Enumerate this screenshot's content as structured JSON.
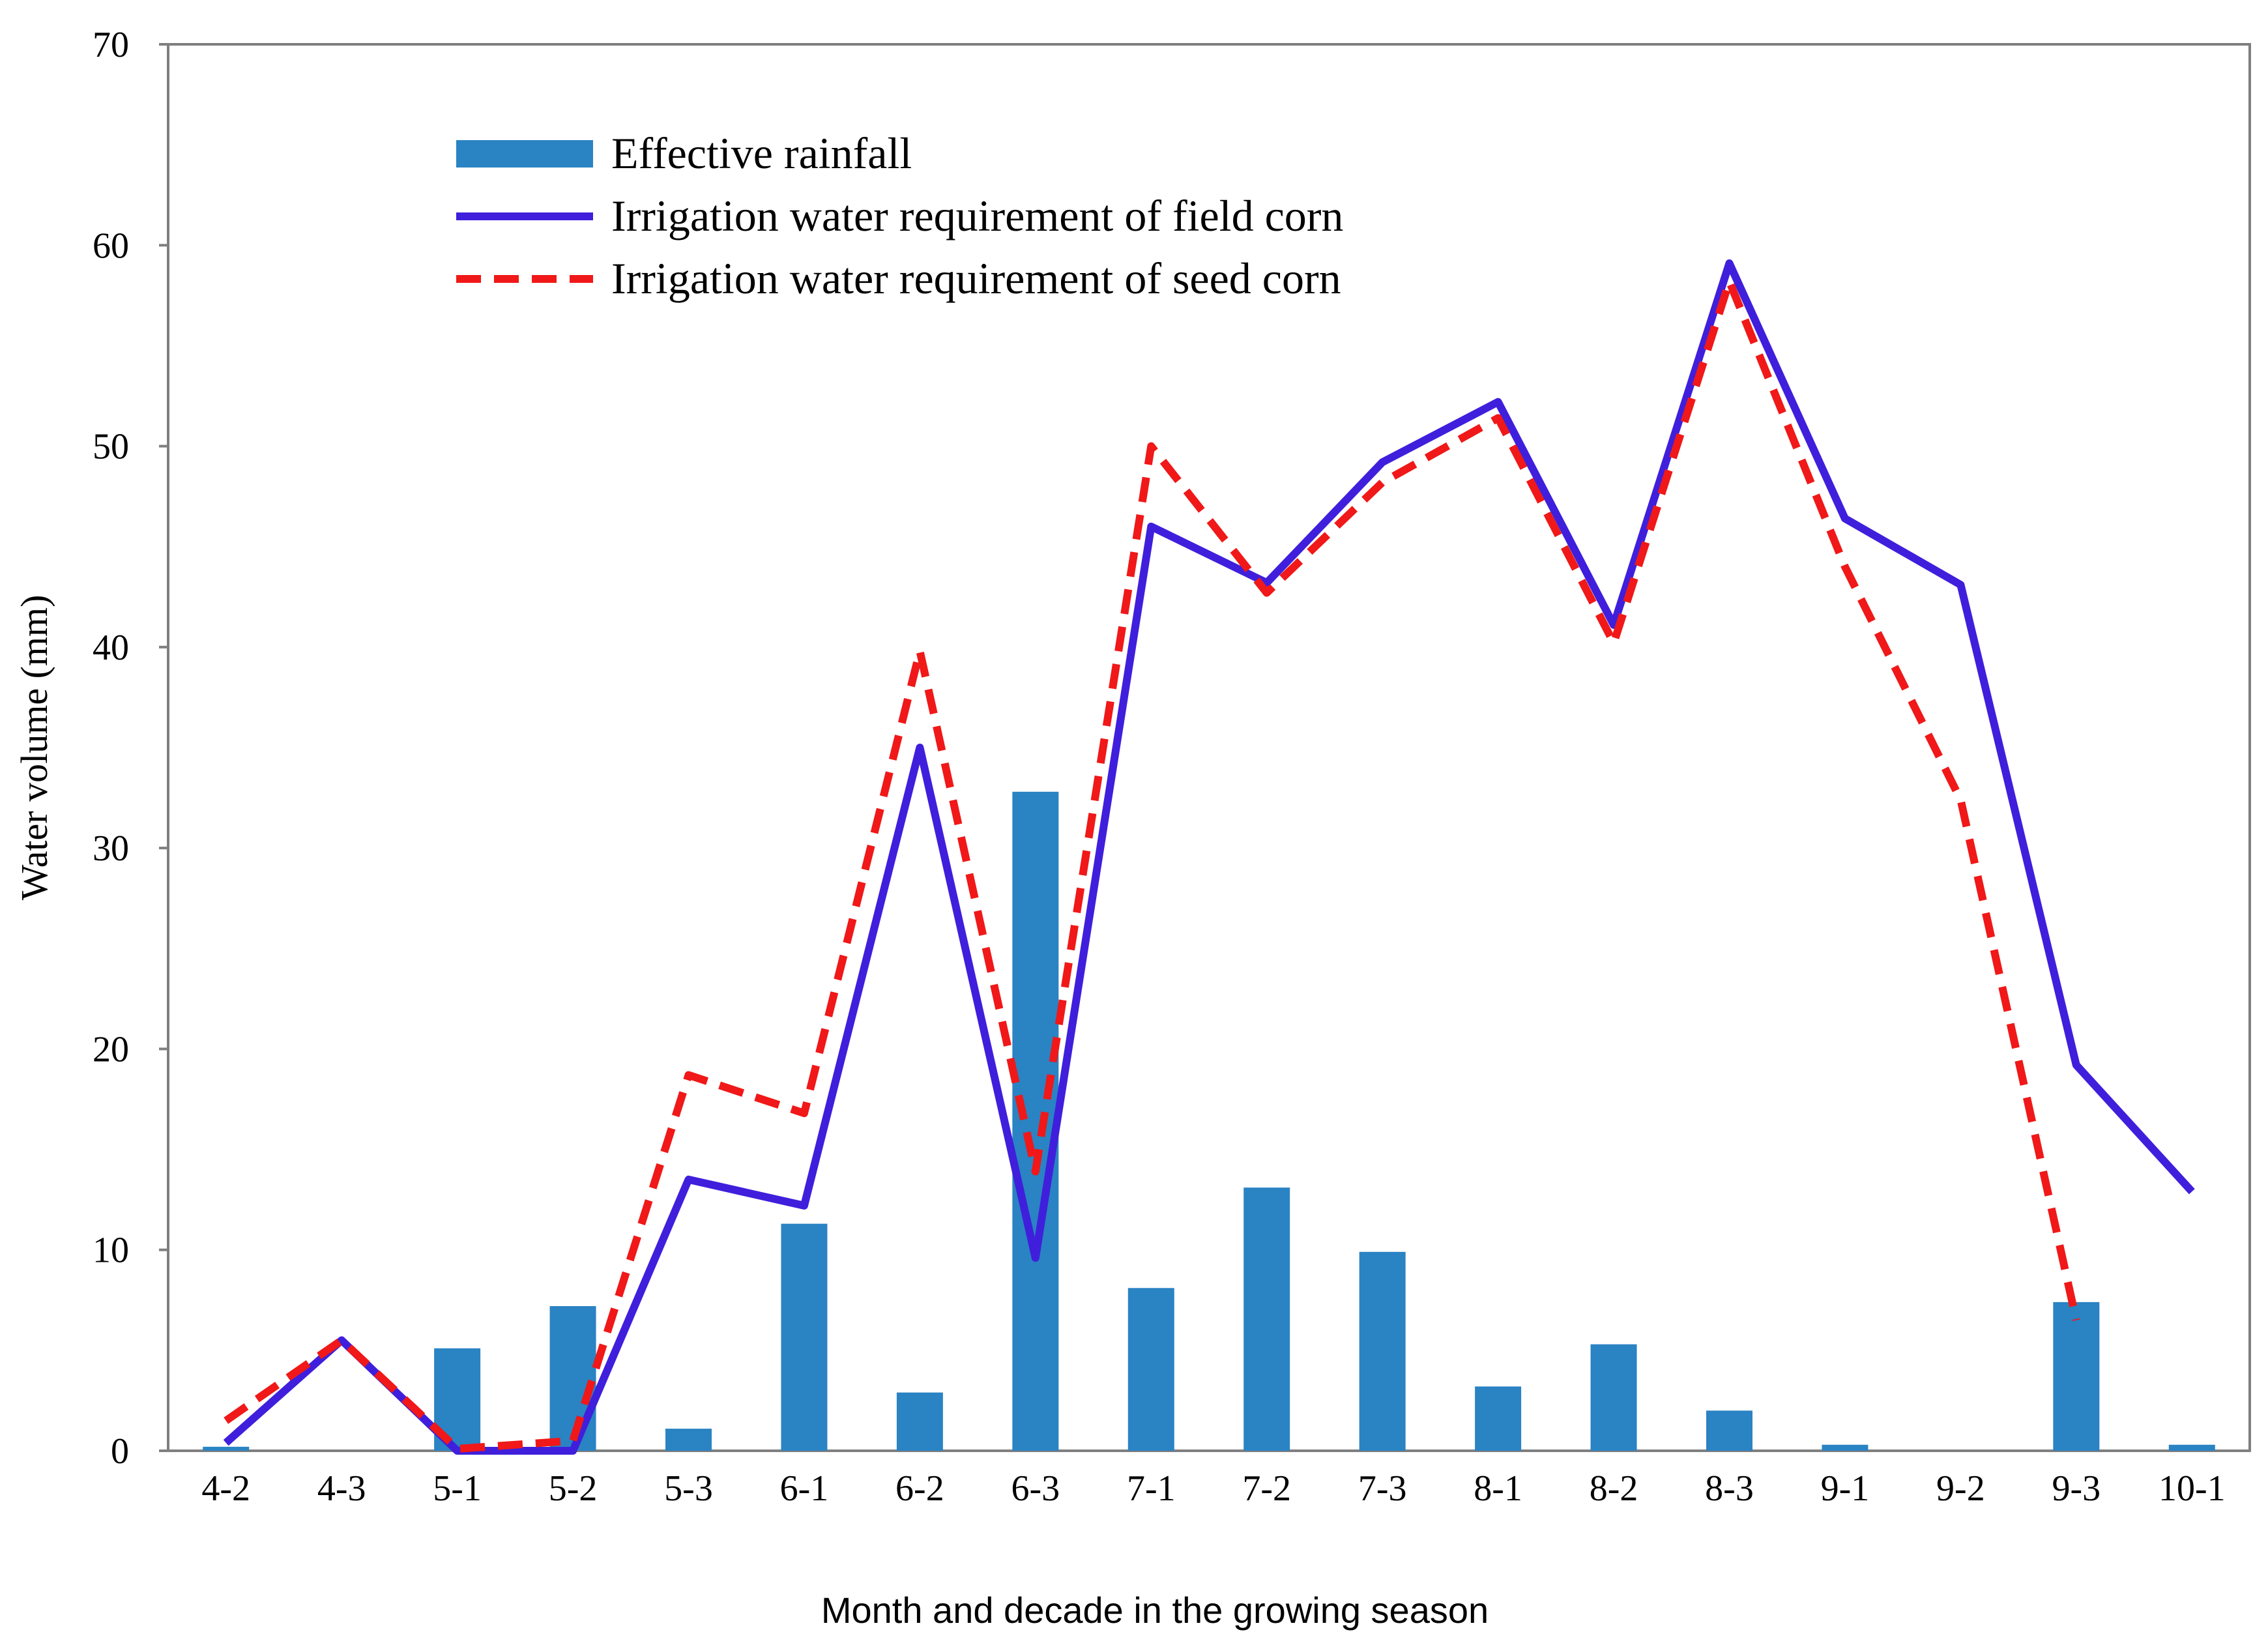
{
  "chart_data": {
    "type": "bar",
    "title": "",
    "xlabel": "Month and decade in the growing season",
    "ylabel": "Water volume (mm)",
    "ylim": [
      0,
      70
    ],
    "yticks": [
      "0",
      "10",
      "20",
      "30",
      "40",
      "50",
      "60",
      "70"
    ],
    "grid": false,
    "legend_position": "top-left",
    "categories": [
      "4-2",
      "4-3",
      "5-1",
      "5-2",
      "5-3",
      "6-1",
      "6-2",
      "6-3",
      "7-1",
      "7-2",
      "7-3",
      "8-1",
      "8-2",
      "8-3",
      "9-1",
      "9-2",
      "9-3",
      "10-1"
    ],
    "series": [
      {
        "name": "Effective rainfall",
        "kind": "bar",
        "color": "#2a83c3",
        "values": [
          0.2,
          0,
          5.1,
          7.2,
          1.1,
          11.3,
          2.9,
          32.8,
          8.1,
          13.1,
          9.9,
          3.2,
          5.3,
          2.0,
          0.3,
          0,
          7.4,
          0.3
        ]
      },
      {
        "name": "Irrigation water requirement of field corn",
        "kind": "line",
        "style": "solid",
        "color": "#3f1fdc",
        "values": [
          0.4,
          5.5,
          0,
          0,
          13.5,
          12.2,
          35.0,
          9.6,
          46.0,
          43.2,
          49.2,
          52.2,
          41.1,
          59.1,
          46.4,
          43.1,
          19.2,
          12.9
        ]
      },
      {
        "name": "Irrigation water requirement of seed corn",
        "kind": "line",
        "style": "dashed",
        "color": "#f01818",
        "values": [
          1.5,
          5.5,
          0.1,
          0.5,
          18.7,
          16.8,
          39.8,
          13.9,
          50.0,
          42.7,
          48.2,
          51.4,
          40.2,
          58.2,
          44.0,
          32.4,
          6.5,
          null
        ]
      }
    ]
  }
}
